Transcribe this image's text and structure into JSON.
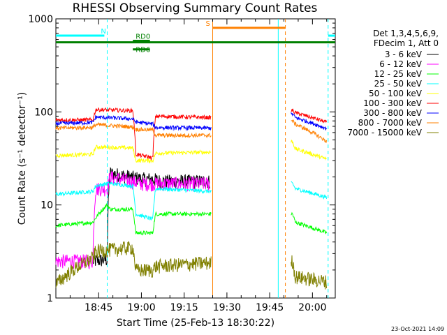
{
  "chart_data": {
    "type": "line",
    "title": "RHESSI Observing Summary Count Rates",
    "xlabel": "Start Time (25-Feb-13 18:30:22)",
    "ylabel": "Count Rate (s⁻¹ detector⁻¹)",
    "y_scale": "log",
    "ylim": [
      1,
      1000
    ],
    "x_unit": "minutes after 18:30",
    "xlim": [
      0,
      98
    ],
    "x_ticks": [
      {
        "value": 15,
        "label": "18:45"
      },
      {
        "value": 30,
        "label": "19:00"
      },
      {
        "value": 45,
        "label": "19:15"
      },
      {
        "value": 60,
        "label": "19:30"
      },
      {
        "value": 75,
        "label": "19:45"
      },
      {
        "value": 90,
        "label": "20:00"
      }
    ],
    "y_ticks": [
      {
        "value": 1,
        "label": "1"
      },
      {
        "value": 10,
        "label": "10"
      },
      {
        "value": 100,
        "label": "100"
      },
      {
        "value": 1000,
        "label": "1000"
      }
    ],
    "legend_header": [
      "Det 1,3,4,5,6,9,",
      "FDecim 1, Att 0"
    ],
    "legend_placement": "right",
    "series": [
      {
        "name": "3 - 6 keV",
        "color": "#000000",
        "points": [
          [
            13,
            2.5
          ],
          [
            18,
            2.6
          ],
          [
            19,
            22
          ],
          [
            30,
            19
          ],
          [
            34,
            19
          ],
          [
            37,
            18
          ],
          [
            54,
            18
          ]
        ]
      },
      {
        "name": "6 - 12 keV",
        "color": "#ff00ff",
        "points": [
          [
            0,
            2.5
          ],
          [
            13,
            2.5
          ],
          [
            14,
            15
          ],
          [
            18,
            15
          ],
          [
            19,
            20
          ],
          [
            30,
            17
          ],
          [
            34,
            17
          ],
          [
            37,
            17
          ],
          [
            54,
            17
          ]
        ]
      },
      {
        "name": "12 - 25 keV",
        "color": "#00ff00",
        "points": [
          [
            0,
            6
          ],
          [
            13,
            6.5
          ],
          [
            15,
            8
          ],
          [
            18,
            10
          ],
          [
            19,
            9
          ],
          [
            27,
            9
          ],
          [
            28,
            5
          ],
          [
            34,
            5
          ],
          [
            35,
            8
          ],
          [
            54,
            8
          ],
          [
            83,
            8
          ],
          [
            84,
            6.5
          ],
          [
            95,
            5
          ]
        ]
      },
      {
        "name": "25 - 50 keV",
        "color": "#00ffff",
        "points": [
          [
            0,
            13
          ],
          [
            13,
            14
          ],
          [
            14,
            16
          ],
          [
            18,
            17
          ],
          [
            19,
            17
          ],
          [
            27,
            16
          ],
          [
            28,
            8
          ],
          [
            34,
            7
          ],
          [
            35,
            15
          ],
          [
            54,
            14
          ],
          [
            83,
            17
          ],
          [
            84,
            15
          ],
          [
            95,
            12
          ]
        ]
      },
      {
        "name": "50 - 100 keV",
        "color": "#ffff00",
        "points": [
          [
            0,
            34
          ],
          [
            13,
            35
          ],
          [
            14,
            42
          ],
          [
            27,
            41
          ],
          [
            28,
            30
          ],
          [
            34,
            30
          ],
          [
            35,
            36
          ],
          [
            54,
            37
          ],
          [
            83,
            48
          ],
          [
            84,
            40
          ],
          [
            95,
            31
          ]
        ]
      },
      {
        "name": "100 - 300 keV",
        "color": "#ff0000",
        "points": [
          [
            0,
            82
          ],
          [
            13,
            82
          ],
          [
            14,
            106
          ],
          [
            27,
            103
          ],
          [
            28,
            35
          ],
          [
            34,
            32
          ],
          [
            35,
            90
          ],
          [
            54,
            87
          ],
          [
            83,
            104
          ],
          [
            84,
            98
          ],
          [
            95,
            77
          ]
        ]
      },
      {
        "name": "300 - 800 keV",
        "color": "#0000ff",
        "points": [
          [
            0,
            75
          ],
          [
            13,
            77
          ],
          [
            14,
            88
          ],
          [
            27,
            84
          ],
          [
            28,
            78
          ],
          [
            34,
            74
          ],
          [
            35,
            68
          ],
          [
            54,
            67
          ],
          [
            83,
            95
          ],
          [
            84,
            87
          ],
          [
            95,
            66
          ]
        ]
      },
      {
        "name": "800 - 7000 keV",
        "color": "#ff8000",
        "points": [
          [
            0,
            67
          ],
          [
            13,
            68
          ],
          [
            14,
            73
          ],
          [
            27,
            69
          ],
          [
            28,
            65
          ],
          [
            34,
            64
          ],
          [
            35,
            56
          ],
          [
            54,
            56
          ],
          [
            83,
            80
          ],
          [
            84,
            74
          ],
          [
            95,
            48
          ]
        ]
      },
      {
        "name": "7000 - 15000 keV",
        "color": "#808000",
        "points": [
          [
            0,
            1.4
          ],
          [
            13,
            2.7
          ],
          [
            14,
            3.2
          ],
          [
            27,
            3.5
          ],
          [
            28,
            2
          ],
          [
            34,
            2
          ],
          [
            35,
            2.2
          ],
          [
            54,
            2.4
          ],
          [
            83,
            2.5
          ],
          [
            84,
            1.7
          ],
          [
            95,
            1.5
          ]
        ]
      }
    ],
    "gaps": [
      [
        54.5,
        82.5
      ]
    ],
    "event_lines": [
      {
        "x": 18,
        "color": "#00ffff",
        "style": "dashed"
      },
      {
        "x": 55,
        "color": "#ff8000",
        "style": "solid"
      },
      {
        "x": 78,
        "color": "#00ffff",
        "style": "solid"
      },
      {
        "x": 80.5,
        "color": "#ff8000",
        "style": "dashed"
      },
      {
        "x": 95.5,
        "color": "#00ffff",
        "style": "dashed"
      }
    ],
    "flag_bars": [
      {
        "label": "N",
        "color": "#00ffff",
        "y": 660,
        "segments": [
          [
            0,
            17
          ],
          [
            95.5,
            98
          ]
        ]
      },
      {
        "label": "S",
        "color": "#ff8000",
        "y": 800,
        "segments": [
          [
            55,
            80.5
          ]
        ]
      },
      {
        "label": "",
        "color": "#008000",
        "y": 560,
        "segments": [
          [
            0,
            98
          ]
        ]
      },
      {
        "label": "RD0",
        "color": "#008000",
        "y": 580,
        "segments": [
          [
            27,
            33
          ]
        ]
      },
      {
        "label": "RD6",
        "color": "#008000",
        "y": 470,
        "segments": [
          [
            27,
            33
          ]
        ]
      }
    ]
  },
  "timestamp": "23-Oct-2021 14:09"
}
